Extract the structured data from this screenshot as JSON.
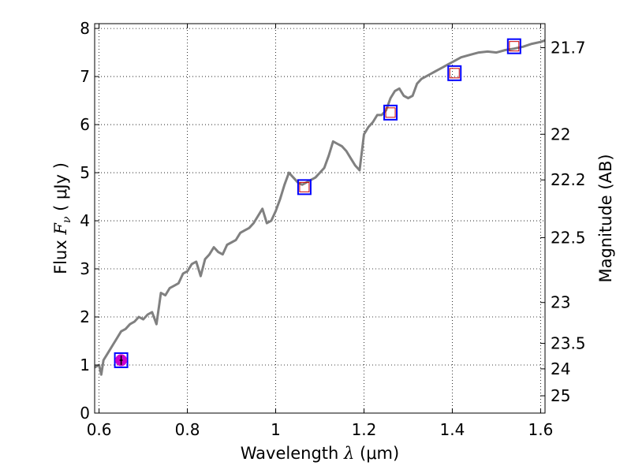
{
  "chart_data": {
    "type": "line",
    "title": "",
    "xlabel": "Wavelength  λ (μm)",
    "xlabel_parts": {
      "prefix": "Wavelength  ",
      "symbol": "λ",
      "suffix": " (μm)"
    },
    "ylabel": "Flux  Fν  ( μJy )",
    "ylabel_parts": {
      "prefix": "Flux  ",
      "symbol": "F",
      "subscript": "ν",
      "suffix": "  ( μJy )"
    },
    "y2label": "Magnitude (AB)",
    "xlim": [
      0.59,
      1.61
    ],
    "ylim": [
      0,
      8.1
    ],
    "grid": true,
    "x_ticks": [
      0.6,
      0.8,
      1.0,
      1.2,
      1.4,
      1.6
    ],
    "x_tick_labels": [
      "0.6",
      "0.8",
      "1",
      "1.2",
      "1.4",
      "1.6"
    ],
    "y_ticks": [
      0,
      1,
      2,
      3,
      4,
      5,
      6,
      7,
      8
    ],
    "y_tick_labels": [
      "0",
      "1",
      "2",
      "3",
      "4",
      "5",
      "6",
      "7",
      "8"
    ],
    "y2_ticks": [
      {
        "label": "21.7",
        "flux": 7.6
      },
      {
        "label": "22",
        "flux": 5.8
      },
      {
        "label": "22.2",
        "flux": 4.85
      },
      {
        "label": "22.5",
        "flux": 3.65
      },
      {
        "label": "23",
        "flux": 2.3
      },
      {
        "label": "23.5",
        "flux": 1.45
      },
      {
        "label": "24",
        "flux": 0.92
      },
      {
        "label": "25",
        "flux": 0.36
      }
    ],
    "series": [
      {
        "type": "line",
        "color": "#808080",
        "points": [
          [
            0.59,
            0.95
          ],
          [
            0.6,
            1.0
          ],
          [
            0.605,
            0.8
          ],
          [
            0.61,
            1.1
          ],
          [
            0.62,
            1.25
          ],
          [
            0.63,
            1.4
          ],
          [
            0.64,
            1.55
          ],
          [
            0.65,
            1.7
          ],
          [
            0.66,
            1.75
          ],
          [
            0.67,
            1.85
          ],
          [
            0.68,
            1.9
          ],
          [
            0.69,
            2.0
          ],
          [
            0.7,
            1.95
          ],
          [
            0.71,
            2.05
          ],
          [
            0.72,
            2.1
          ],
          [
            0.73,
            1.85
          ],
          [
            0.74,
            2.5
          ],
          [
            0.75,
            2.45
          ],
          [
            0.76,
            2.6
          ],
          [
            0.77,
            2.65
          ],
          [
            0.78,
            2.7
          ],
          [
            0.79,
            2.9
          ],
          [
            0.8,
            2.95
          ],
          [
            0.81,
            3.1
          ],
          [
            0.82,
            3.15
          ],
          [
            0.83,
            2.85
          ],
          [
            0.84,
            3.2
          ],
          [
            0.85,
            3.3
          ],
          [
            0.86,
            3.45
          ],
          [
            0.87,
            3.35
          ],
          [
            0.88,
            3.3
          ],
          [
            0.89,
            3.5
          ],
          [
            0.9,
            3.55
          ],
          [
            0.91,
            3.6
          ],
          [
            0.92,
            3.75
          ],
          [
            0.93,
            3.8
          ],
          [
            0.94,
            3.85
          ],
          [
            0.95,
            3.95
          ],
          [
            0.96,
            4.1
          ],
          [
            0.97,
            4.25
          ],
          [
            0.98,
            3.95
          ],
          [
            0.99,
            4.0
          ],
          [
            1.0,
            4.2
          ],
          [
            1.01,
            4.45
          ],
          [
            1.02,
            4.75
          ],
          [
            1.03,
            5.0
          ],
          [
            1.04,
            4.9
          ],
          [
            1.05,
            4.8
          ],
          [
            1.06,
            4.75
          ],
          [
            1.07,
            4.8
          ],
          [
            1.08,
            4.85
          ],
          [
            1.09,
            4.9
          ],
          [
            1.1,
            5.0
          ],
          [
            1.11,
            5.1
          ],
          [
            1.12,
            5.35
          ],
          [
            1.13,
            5.65
          ],
          [
            1.14,
            5.6
          ],
          [
            1.15,
            5.55
          ],
          [
            1.16,
            5.45
          ],
          [
            1.17,
            5.3
          ],
          [
            1.18,
            5.15
          ],
          [
            1.19,
            5.05
          ],
          [
            1.2,
            5.8
          ],
          [
            1.21,
            5.95
          ],
          [
            1.22,
            6.05
          ],
          [
            1.23,
            6.2
          ],
          [
            1.24,
            6.2
          ],
          [
            1.25,
            6.3
          ],
          [
            1.26,
            6.55
          ],
          [
            1.27,
            6.7
          ],
          [
            1.28,
            6.75
          ],
          [
            1.29,
            6.6
          ],
          [
            1.3,
            6.55
          ],
          [
            1.31,
            6.6
          ],
          [
            1.32,
            6.85
          ],
          [
            1.33,
            6.95
          ],
          [
            1.34,
            7.0
          ],
          [
            1.35,
            7.05
          ],
          [
            1.36,
            7.1
          ],
          [
            1.37,
            7.15
          ],
          [
            1.38,
            7.2
          ],
          [
            1.39,
            7.25
          ],
          [
            1.4,
            7.3
          ],
          [
            1.42,
            7.4
          ],
          [
            1.44,
            7.45
          ],
          [
            1.46,
            7.5
          ],
          [
            1.48,
            7.52
          ],
          [
            1.5,
            7.5
          ],
          [
            1.52,
            7.55
          ],
          [
            1.54,
            7.58
          ],
          [
            1.56,
            7.62
          ],
          [
            1.58,
            7.68
          ],
          [
            1.6,
            7.72
          ],
          [
            1.61,
            7.75
          ]
        ]
      },
      {
        "type": "scatter",
        "marker": "square",
        "color": "#0000ff",
        "points": [
          [
            0.65,
            1.1
          ],
          [
            1.065,
            4.7
          ],
          [
            1.26,
            6.25
          ],
          [
            1.405,
            7.07
          ],
          [
            1.54,
            7.63
          ]
        ]
      },
      {
        "type": "scatter",
        "marker": "small-square",
        "color": "#cc0000",
        "points": [
          [
            1.065,
            4.7
          ],
          [
            1.26,
            6.25
          ],
          [
            1.405,
            7.07
          ],
          [
            1.54,
            7.63
          ]
        ]
      },
      {
        "type": "scatter",
        "marker": "circle",
        "color": "#cc00cc",
        "points": [
          [
            0.65,
            1.1
          ]
        ]
      }
    ]
  }
}
